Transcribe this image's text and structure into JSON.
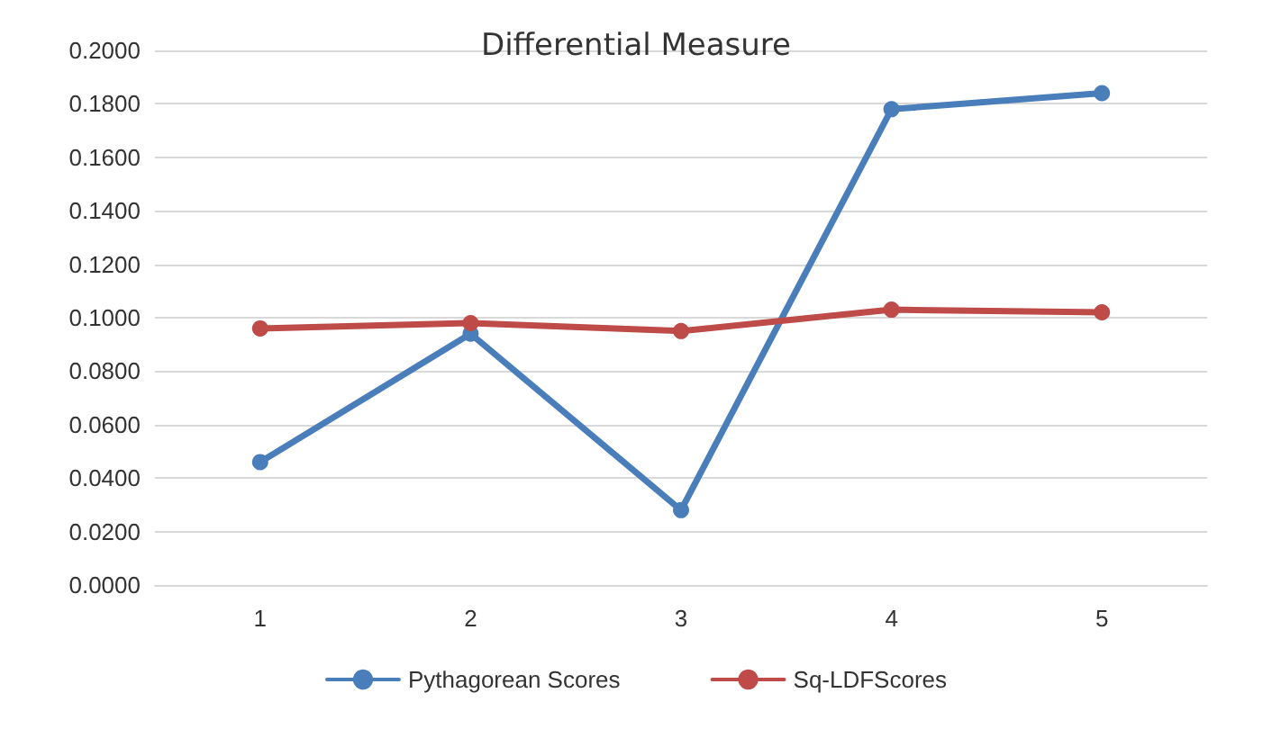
{
  "chart_data": {
    "type": "line",
    "title": "Differential Measure",
    "categories": [
      "1",
      "2",
      "3",
      "4",
      "5"
    ],
    "series": [
      {
        "name": "Pythagorean Scores",
        "color": "#4a7ebb",
        "values": [
          0.046,
          0.094,
          0.028,
          0.178,
          0.184
        ]
      },
      {
        "name": "Sq-LDFScores",
        "color": "#be4b48",
        "values": [
          0.096,
          0.098,
          0.095,
          0.103,
          0.102
        ]
      }
    ],
    "ylim": [
      0,
      0.2
    ],
    "yticks": [
      {
        "value": 0,
        "label": "0.0000"
      },
      {
        "value": 0.02,
        "label": "0.0200"
      },
      {
        "value": 0.04,
        "label": "0.0400"
      },
      {
        "value": 0.06,
        "label": "0.0600"
      },
      {
        "value": 0.08,
        "label": "0.0800"
      },
      {
        "value": 0.1,
        "label": "0.1000"
      },
      {
        "value": 0.12,
        "label": "0.1200"
      },
      {
        "value": 0.14,
        "label": "0.1400"
      },
      {
        "value": 0.16,
        "label": "0.1600"
      },
      {
        "value": 0.18,
        "label": "0.1800"
      },
      {
        "value": 0.2,
        "label": "0.2000"
      }
    ],
    "grid": "y",
    "legend": "bottom",
    "marker": "circle",
    "line_style": "solid"
  }
}
